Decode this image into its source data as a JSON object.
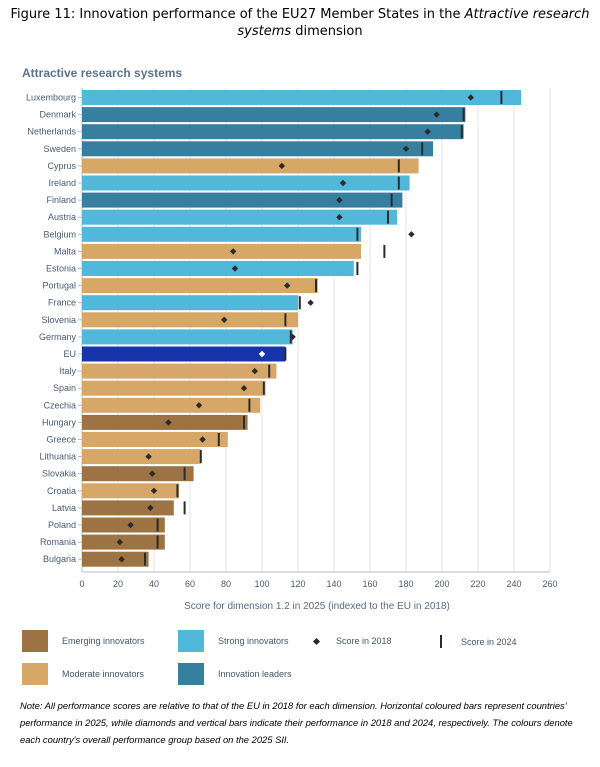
{
  "figure": {
    "title_prefix": "Figure 11: Innovation performance of the EU27 Member States in the ",
    "title_italic": "Attractive research systems",
    "title_suffix": " dimension"
  },
  "colors": {
    "emerging": "#9e7343",
    "moderate": "#d6a767",
    "strong": "#52b8da",
    "leader": "#367f9e",
    "eu": "#1933a8",
    "marker": "#2b2b2b",
    "grid": "#e4e6ea",
    "axis_text": "#4a5a70"
  },
  "chart_data": {
    "type": "bar",
    "orientation": "horizontal",
    "title": "Attractive research systems",
    "xlabel": "Score for dimension 1.2 in 2025 (indexed to the EU in 2018)",
    "ylabel": "",
    "xlim": [
      0,
      260
    ],
    "xticks": [
      0,
      20,
      40,
      60,
      80,
      100,
      120,
      140,
      160,
      180,
      200,
      220,
      240,
      260
    ],
    "grid": true,
    "categories": [
      "Luxembourg",
      "Denmark",
      "Netherlands",
      "Sweden",
      "Cyprus",
      "Ireland",
      "Finland",
      "Austria",
      "Belgium",
      "Malta",
      "Estonia",
      "Portugal",
      "France",
      "Slovenia",
      "Germany",
      "EU",
      "Italy",
      "Spain",
      "Czechia",
      "Hungary",
      "Greece",
      "Lithuania",
      "Slovakia",
      "Croatia",
      "Latvia",
      "Poland",
      "Romania",
      "Bulgaria"
    ],
    "groups": [
      "strong",
      "leader",
      "leader",
      "leader",
      "moderate",
      "strong",
      "leader",
      "strong",
      "strong",
      "moderate",
      "strong",
      "moderate",
      "strong",
      "moderate",
      "strong",
      "eu",
      "moderate",
      "moderate",
      "moderate",
      "emerging",
      "moderate",
      "moderate",
      "emerging",
      "moderate",
      "emerging",
      "emerging",
      "emerging",
      "emerging"
    ],
    "series": [
      {
        "name": "Score in 2025",
        "marker": "bar",
        "values": [
          244,
          213,
          212,
          195,
          187,
          182,
          178,
          175,
          155,
          155,
          151,
          131,
          120,
          120,
          117,
          113,
          108,
          102,
          99,
          92,
          81,
          66,
          62,
          54,
          51,
          46,
          46,
          37
        ]
      },
      {
        "name": "Score in 2018",
        "marker": "diamond",
        "values": [
          216,
          197,
          192,
          180,
          111,
          145,
          143,
          143,
          183,
          84,
          85,
          114,
          127,
          79,
          117,
          100,
          96,
          90,
          65,
          48,
          67,
          37,
          39,
          40,
          38,
          27,
          21,
          22
        ]
      },
      {
        "name": "Score in 2024",
        "marker": "vertical-bar",
        "values": [
          233,
          212,
          211,
          189,
          176,
          176,
          172,
          170,
          153,
          168,
          153,
          130,
          121,
          113,
          116,
          113,
          104,
          101,
          93,
          90,
          76,
          66,
          57,
          53,
          57,
          42,
          42,
          35
        ]
      }
    ],
    "legend": {
      "position": "bottom",
      "items": [
        {
          "key": "emerging",
          "label": "Emerging innovators"
        },
        {
          "key": "strong",
          "label": "Strong innovators"
        },
        {
          "key": "diamond",
          "label": "Score in 2018"
        },
        {
          "key": "vbar",
          "label": "Score in 2024"
        },
        {
          "key": "moderate",
          "label": "Moderate innovators"
        },
        {
          "key": "leader",
          "label": "Innovation leaders"
        }
      ]
    }
  },
  "note": "Note: All performance scores are relative to that of the EU in 2018 for each dimension. Horizontal coloured bars represent countries' performance in 2025, while diamonds and vertical bars indicate their performance in 2018 and 2024, respectively. The colours denote each country's overall performance group based on the 2025 SII."
}
